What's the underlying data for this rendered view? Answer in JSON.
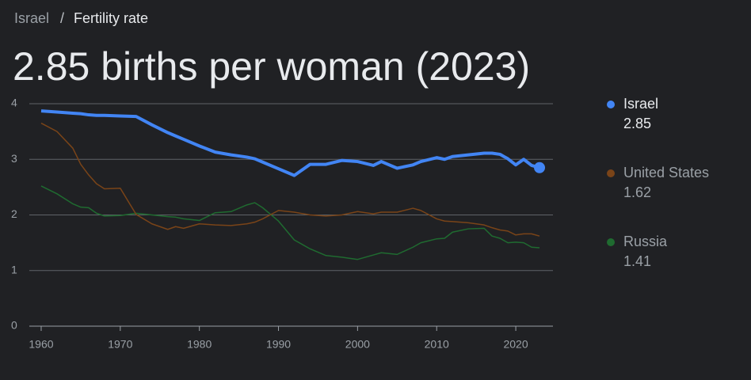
{
  "breadcrumb": {
    "parent": "Israel",
    "separator": "/",
    "current": "Fertility rate"
  },
  "chart_data": {
    "type": "line",
    "title": "2.85 births per woman (2023)",
    "x": [
      1960,
      1962,
      1964,
      1965,
      1966,
      1967,
      1968,
      1970,
      1972,
      1974,
      1976,
      1977,
      1978,
      1980,
      1982,
      1984,
      1986,
      1987,
      1988,
      1990,
      1992,
      1994,
      1996,
      1998,
      2000,
      2002,
      2003,
      2005,
      2007,
      2008,
      2010,
      2011,
      2012,
      2014,
      2016,
      2017,
      2018,
      2019,
      2020,
      2021,
      2022,
      2023
    ],
    "series": [
      {
        "name": "Israel",
        "color": "#4285f4",
        "values": [
          3.87,
          3.85,
          3.83,
          3.82,
          3.8,
          3.79,
          3.79,
          3.78,
          3.77,
          3.62,
          3.48,
          3.42,
          3.36,
          3.24,
          3.13,
          3.08,
          3.04,
          3.01,
          2.95,
          2.83,
          2.71,
          2.91,
          2.91,
          2.98,
          2.96,
          2.89,
          2.96,
          2.84,
          2.9,
          2.96,
          3.03,
          3.0,
          3.05,
          3.08,
          3.11,
          3.11,
          3.09,
          3.01,
          2.9,
          3.0,
          2.89,
          2.85
        ]
      },
      {
        "name": "United States",
        "color": "#7a4418",
        "values": [
          3.65,
          3.5,
          3.2,
          2.91,
          2.72,
          2.56,
          2.47,
          2.48,
          2.01,
          1.84,
          1.74,
          1.79,
          1.76,
          1.84,
          1.82,
          1.81,
          1.84,
          1.87,
          1.93,
          2.08,
          2.05,
          2.0,
          1.98,
          2.0,
          2.06,
          2.02,
          2.05,
          2.05,
          2.12,
          2.08,
          1.93,
          1.89,
          1.88,
          1.86,
          1.82,
          1.77,
          1.73,
          1.71,
          1.64,
          1.66,
          1.66,
          1.62
        ]
      },
      {
        "name": "Russia",
        "color": "#1f6b30",
        "values": [
          2.52,
          2.38,
          2.2,
          2.14,
          2.13,
          2.03,
          1.98,
          1.99,
          2.03,
          2.0,
          1.97,
          1.96,
          1.93,
          1.9,
          2.04,
          2.06,
          2.18,
          2.22,
          2.13,
          1.89,
          1.55,
          1.39,
          1.27,
          1.24,
          1.2,
          1.28,
          1.32,
          1.29,
          1.42,
          1.5,
          1.57,
          1.58,
          1.69,
          1.75,
          1.76,
          1.62,
          1.58,
          1.5,
          1.51,
          1.5,
          1.42,
          1.41
        ]
      }
    ],
    "xlim": [
      1958.5,
      2024.7
    ],
    "ylim": [
      0,
      4
    ],
    "xticks": [
      1960,
      1970,
      1980,
      1990,
      2000,
      2010,
      2020
    ],
    "yticks": [
      0,
      1,
      2,
      3,
      4
    ],
    "grid": true,
    "legend": "right"
  }
}
